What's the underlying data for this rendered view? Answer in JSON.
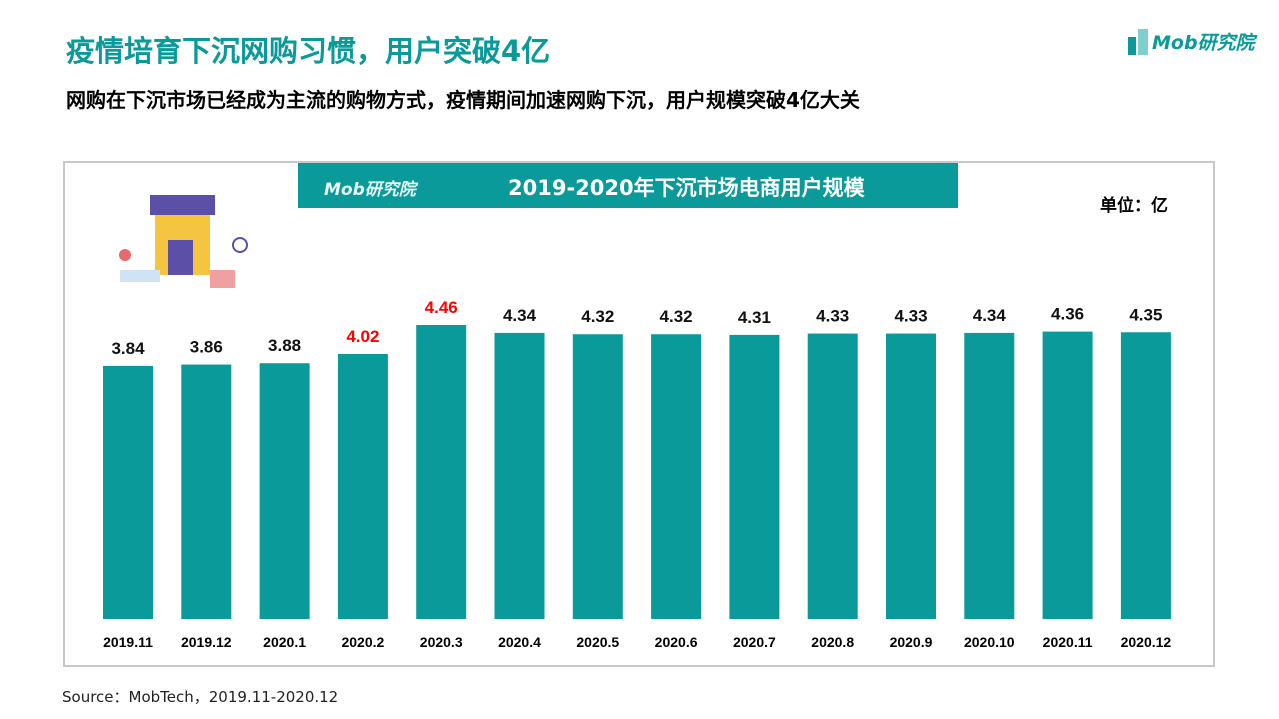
{
  "header": {
    "title": "疫情培育下沉网购习惯，用户突破4亿",
    "subtitle": "网购在下沉市场已经成为主流的购物方式，疫情期间加速网购下沉，用户规模突破4亿大关",
    "logo_text": "Mob研究院"
  },
  "source": "Source：MobTech，2019.11-2020.12",
  "colors": {
    "accent": "#0b9a9a",
    "highlight": "#ff0000"
  },
  "chart_data": {
    "type": "bar",
    "title": "2019-2020年下沉市场电商用户规模",
    "unit_label": "单位：亿",
    "categories": [
      "2019.11",
      "2019.12",
      "2020.1",
      "2020.2",
      "2020.3",
      "2020.4",
      "2020.5",
      "2020.6",
      "2020.7",
      "2020.8",
      "2020.9",
      "2020.10",
      "2020.11",
      "2020.12"
    ],
    "values": [
      3.84,
      3.86,
      3.88,
      4.02,
      4.46,
      4.34,
      4.32,
      4.32,
      4.31,
      4.33,
      4.33,
      4.34,
      4.36,
      4.35
    ],
    "highlighted": [
      "2020.2",
      "2020.3"
    ],
    "ylim": [
      0,
      4.46
    ],
    "grid": false
  }
}
